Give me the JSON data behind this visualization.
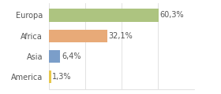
{
  "categories": [
    "America",
    "Asia",
    "Africa",
    "Europa"
  ],
  "values": [
    1.3,
    6.4,
    32.1,
    60.3
  ],
  "labels": [
    "1,3%",
    "6,4%",
    "32,1%",
    "60,3%"
  ],
  "bar_colors": [
    "#e8c84a",
    "#7b9ec9",
    "#e8aa78",
    "#adc480"
  ],
  "background_color": "#ffffff",
  "xlim": [
    0,
    80
  ],
  "grid_color": "#dddddd",
  "grid_positions": [
    0,
    20,
    40,
    60,
    80
  ],
  "label_fontsize": 7,
  "tick_fontsize": 7,
  "bar_height": 0.62,
  "text_color": "#555555"
}
